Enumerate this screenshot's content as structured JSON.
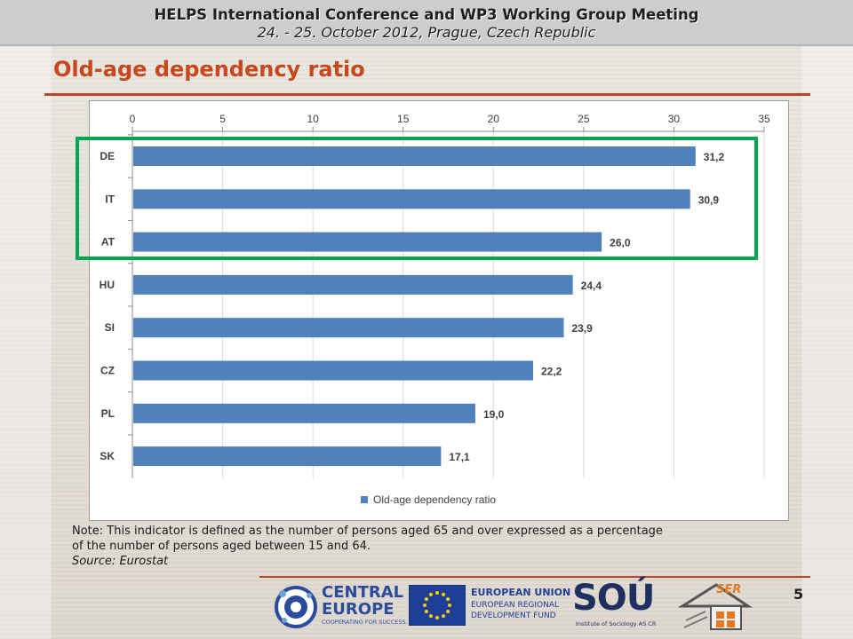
{
  "header": {
    "line1": "HELPS International Conference and WP3 Working Group Meeting",
    "line2": "24. - 25. October 2012, Prague, Czech Republic"
  },
  "slide": {
    "title": "Old-age dependency ratio",
    "page_number": "5"
  },
  "note": {
    "line1": "Note: This indicator is defined as the number of persons aged 65 and over expressed as a percentage",
    "line2": "of the number of persons aged between 15 and 64.",
    "source": "Source: Eurostat"
  },
  "colors": {
    "title": "#c9471d",
    "bar": "#4f81bd",
    "highlight_box": "#00a651",
    "rule": "#b8472a"
  },
  "logos": {
    "central_europe": {
      "line1": "CENTRAL",
      "line2": "EUROPE",
      "tagline": "COOPERATING FOR SUCCESS."
    },
    "eu": {
      "line1": "EUROPEAN UNION",
      "line2": "EUROPEAN REGIONAL",
      "line3": "DEVELOPMENT FUND"
    },
    "sou": {
      "name": "SOÚ",
      "caption": "Institute of Sociology AS CR"
    },
    "ser": {
      "name": "SER"
    }
  },
  "chart_data": {
    "type": "bar",
    "orientation": "horizontal",
    "axis_position": "top",
    "categories": [
      "DE",
      "IT",
      "AT",
      "HU",
      "SI",
      "CZ",
      "PL",
      "SK"
    ],
    "series": [
      {
        "name": "Old-age dependency ratio",
        "values": [
          31.2,
          30.9,
          26.0,
          24.4,
          23.9,
          22.2,
          19.0,
          17.1
        ],
        "data_labels": [
          "31,2",
          "30,9",
          "26,0",
          "24,4",
          "23,9",
          "22,2",
          "19,0",
          "17,1"
        ]
      }
    ],
    "xlim": [
      0,
      35
    ],
    "ticks": [
      0,
      5,
      10,
      15,
      20,
      25,
      30,
      35
    ],
    "tick_labels": [
      "0",
      "5",
      "10",
      "15",
      "20",
      "25",
      "30",
      "35"
    ],
    "grid": true,
    "legend": "bottom",
    "highlighted_categories": [
      "DE",
      "IT",
      "AT"
    ]
  }
}
